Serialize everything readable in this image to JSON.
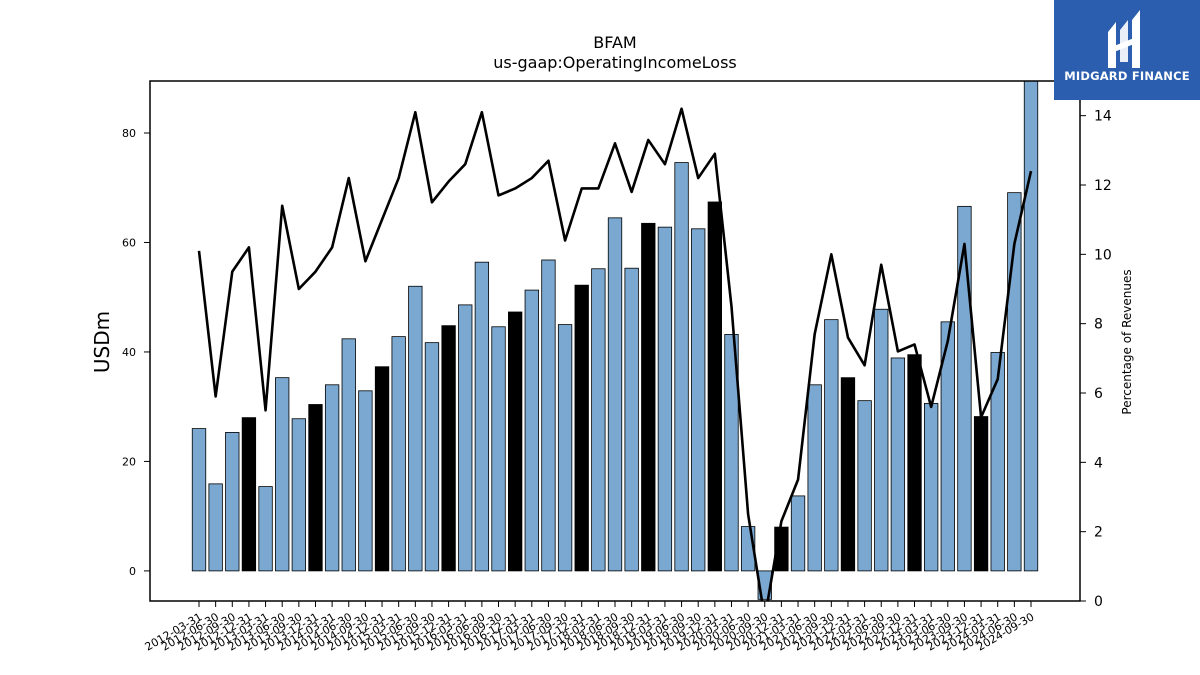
{
  "brand": {
    "name": "MIDGARD FINANCE",
    "bg_color": "#2b5eae"
  },
  "chart_data": {
    "type": "bar",
    "title": "BFAM",
    "subtitle": "us-gaap:OperatingIncomeLoss",
    "ylabel": "USDm",
    "y2label": "Percentage of Revenues",
    "ylim": [
      -5.5,
      89.5
    ],
    "y2lim": [
      0,
      15
    ],
    "yticks": [
      0,
      20,
      40,
      60,
      80
    ],
    "y2ticks": [
      0,
      2,
      4,
      6,
      8,
      10,
      12,
      14
    ],
    "bar_color": "#7aa8d0",
    "q4_bar_color": "#000000",
    "line_color": "#000000",
    "categories": [
      "2012-03-31",
      "2012-06-30",
      "2012-09-30",
      "2012-12-31",
      "2013-03-31",
      "2013-06-30",
      "2013-09-30",
      "2013-12-31",
      "2014-03-31",
      "2014-06-30",
      "2014-09-30",
      "2014-12-31",
      "2015-03-31",
      "2015-06-30",
      "2015-09-30",
      "2015-12-31",
      "2016-03-31",
      "2016-06-30",
      "2016-09-30",
      "2016-12-31",
      "2017-03-31",
      "2017-06-30",
      "2017-09-30",
      "2017-12-31",
      "2018-03-31",
      "2018-06-30",
      "2018-09-30",
      "2018-12-31",
      "2019-03-31",
      "2019-06-30",
      "2019-09-30",
      "2019-12-31",
      "2020-03-31",
      "2020-06-30",
      "2020-09-30",
      "2020-12-31",
      "2021-03-31",
      "2021-06-30",
      "2021-09-30",
      "2021-12-31",
      "2022-03-31",
      "2022-06-30",
      "2022-09-30",
      "2022-12-31",
      "2023-03-31",
      "2023-06-30",
      "2023-09-30",
      "2023-12-31",
      "2024-03-31",
      "2024-06-30",
      "2024-09-30"
    ],
    "series": [
      {
        "type": "bar",
        "values": [
          26.0,
          15.9,
          25.3,
          28.0,
          15.4,
          35.3,
          27.8,
          30.4,
          34.0,
          42.4,
          32.9,
          37.3,
          42.8,
          52.0,
          41.7,
          44.8,
          48.6,
          56.4,
          44.6,
          47.3,
          51.3,
          56.8,
          45.0,
          52.2,
          55.2,
          64.5,
          55.3,
          63.5,
          62.8,
          74.6,
          62.5,
          67.4,
          43.2,
          8.1,
          -5.2,
          8.0,
          13.7,
          34.0,
          45.9,
          35.3,
          31.1,
          47.8,
          38.9,
          39.5,
          30.6,
          45.5,
          66.6,
          28.2,
          39.9,
          69.1,
          89.5
        ]
      },
      {
        "type": "line",
        "axis": "right",
        "values": [
          10.1,
          5.9,
          9.5,
          10.2,
          5.5,
          11.4,
          9.0,
          9.5,
          10.2,
          12.2,
          9.8,
          11.0,
          12.2,
          14.1,
          11.5,
          12.1,
          12.6,
          14.1,
          11.7,
          11.9,
          12.2,
          12.7,
          10.4,
          11.9,
          11.9,
          13.2,
          11.8,
          13.3,
          12.6,
          14.2,
          12.2,
          12.9,
          8.5,
          2.5,
          -0.5,
          2.3,
          3.5,
          7.7,
          10.0,
          7.6,
          6.8,
          9.7,
          7.2,
          7.4,
          5.6,
          7.5,
          10.3,
          5.3,
          6.4,
          10.3,
          12.4
        ]
      }
    ]
  }
}
